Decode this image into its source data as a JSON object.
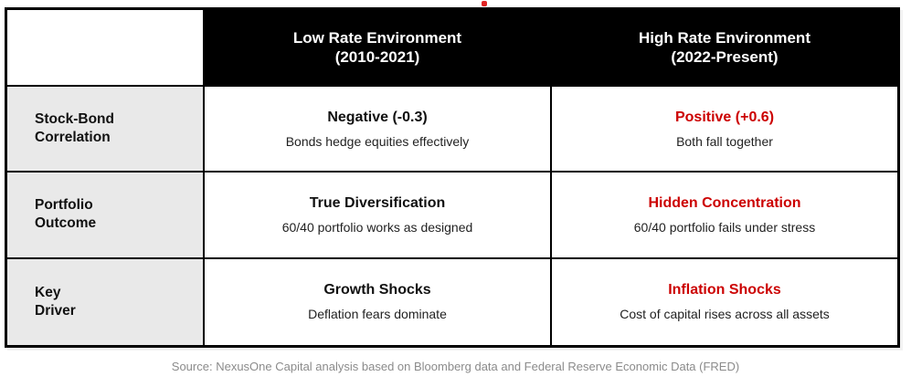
{
  "colors": {
    "accent_red": "#cc0000",
    "dot_red": "#e02424",
    "header_bg": "#000000",
    "label_bg": "#e9e9e9"
  },
  "decoration": {
    "title_period": "."
  },
  "table": {
    "columns": [
      {
        "header": "Low Rate Environment\n(2010-2021)"
      },
      {
        "header": "High Rate Environment\n(2022-Present)"
      }
    ],
    "rows": [
      {
        "label": "Stock-Bond\nCorrelation",
        "low": {
          "headline": "Negative (-0.3)",
          "detail": "Bonds hedge equities effectively"
        },
        "high": {
          "headline": "Positive (+0.6)",
          "detail": "Both fall together"
        }
      },
      {
        "label": "Portfolio\nOutcome",
        "low": {
          "headline": "True Diversification",
          "detail": "60/40 portfolio works as designed"
        },
        "high": {
          "headline": "Hidden Concentration",
          "detail": "60/40 portfolio fails under stress"
        }
      },
      {
        "label": "Key\nDriver",
        "low": {
          "headline": "Growth Shocks",
          "detail": "Deflation fears dominate"
        },
        "high": {
          "headline": "Inflation Shocks",
          "detail": "Cost of capital rises across all assets"
        }
      }
    ]
  },
  "footer": {
    "source": "Source: NexusOne Capital analysis based on Bloomberg data and Federal Reserve Economic Data (FRED)"
  }
}
